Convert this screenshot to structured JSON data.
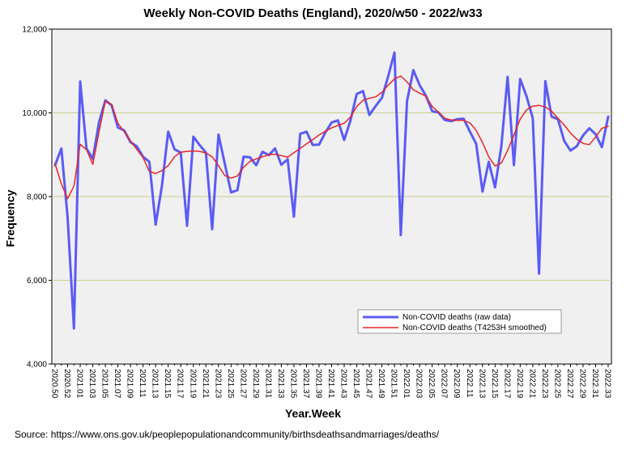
{
  "chart_data": {
    "type": "line",
    "title": "Weekly Non-COVID Deaths (England), 2020/w50 - 2022/w33",
    "xlabel": "Year.Week",
    "ylabel": "Frequency",
    "ylim": [
      4000,
      12000
    ],
    "yticks": [
      4000,
      6000,
      8000,
      10000,
      12000
    ],
    "ytick_labels": [
      "4,000",
      "6,000",
      "8,000",
      "10,000",
      "12,000"
    ],
    "xtick_labels": [
      "2020.50",
      "2020.52",
      "2021.01",
      "2021.03",
      "2021.05",
      "2021.07",
      "2021.09",
      "2021.11",
      "2021.13",
      "2021.15",
      "2021.17",
      "2021.19",
      "2021.21",
      "2021.23",
      "2021.25",
      "2021.27",
      "2021.29",
      "2021.31",
      "2021.33",
      "2021.35",
      "2021.37",
      "2021.39",
      "2021.41",
      "2021.43",
      "2021.45",
      "2021.47",
      "2021.49",
      "2021.51",
      "2022.01",
      "2022.03",
      "2022.05",
      "2022.07",
      "2022.09",
      "2022.11",
      "2022.13",
      "2022.15",
      "2022.17",
      "2022.19",
      "2022.21",
      "2022.23",
      "2022.25",
      "2022.27",
      "2022.29",
      "2022.31",
      "2022.33"
    ],
    "gridlines": "horizontal",
    "legend_position": "bottom-right",
    "series": [
      {
        "name": "Non-COVID deaths (raw data)",
        "color": "#5B5BF5",
        "values": [
          8750,
          9150,
          7500,
          4850,
          10750,
          9150,
          8900,
          9780,
          10300,
          10180,
          9650,
          9580,
          9300,
          9200,
          8950,
          8830,
          7330,
          8250,
          9550,
          9130,
          9050,
          7300,
          9430,
          9230,
          9050,
          7220,
          9480,
          8780,
          8100,
          8150,
          8950,
          8940,
          8750,
          9070,
          8990,
          9150,
          8760,
          8890,
          7520,
          9500,
          9550,
          9230,
          9240,
          9530,
          9770,
          9820,
          9350,
          9820,
          10450,
          10520,
          9950,
          10160,
          10360,
          10880,
          11440,
          7080,
          10280,
          11020,
          10660,
          10410,
          10040,
          10010,
          9830,
          9800,
          9850,
          9860,
          9550,
          9260,
          8120,
          8830,
          8220,
          9210,
          10860,
          8750,
          10810,
          10400,
          9870,
          6160,
          10760,
          9910,
          9850,
          9330,
          9100,
          9200,
          9460,
          9630,
          9490,
          9180,
          9910
        ]
      },
      {
        "name": "Non-COVID deaths (T4253H smoothed)",
        "color": "#E8262A",
        "values": [
          8780,
          8300,
          7950,
          8250,
          9250,
          9120,
          8770,
          9550,
          10280,
          10200,
          9750,
          9550,
          9330,
          9130,
          8930,
          8600,
          8550,
          8620,
          8740,
          8950,
          9060,
          9080,
          9090,
          9080,
          9040,
          8950,
          8740,
          8500,
          8440,
          8490,
          8700,
          8840,
          8900,
          8950,
          9000,
          9010,
          8980,
          8940,
          9050,
          9150,
          9260,
          9360,
          9470,
          9560,
          9640,
          9700,
          9750,
          9900,
          10150,
          10300,
          10350,
          10380,
          10490,
          10660,
          10810,
          10880,
          10740,
          10550,
          10470,
          10400,
          10150,
          10020,
          9870,
          9830,
          9820,
          9820,
          9760,
          9580,
          9290,
          8950,
          8730,
          8800,
          9100,
          9470,
          9850,
          10070,
          10160,
          10180,
          10140,
          10040,
          9870,
          9710,
          9520,
          9370,
          9270,
          9240,
          9420,
          9630,
          9680
        ]
      }
    ]
  },
  "source_note": "Source: https://www.ons.gov.uk/peoplepopulationandcommunity/birthsdeathsandmarriages/deaths/"
}
